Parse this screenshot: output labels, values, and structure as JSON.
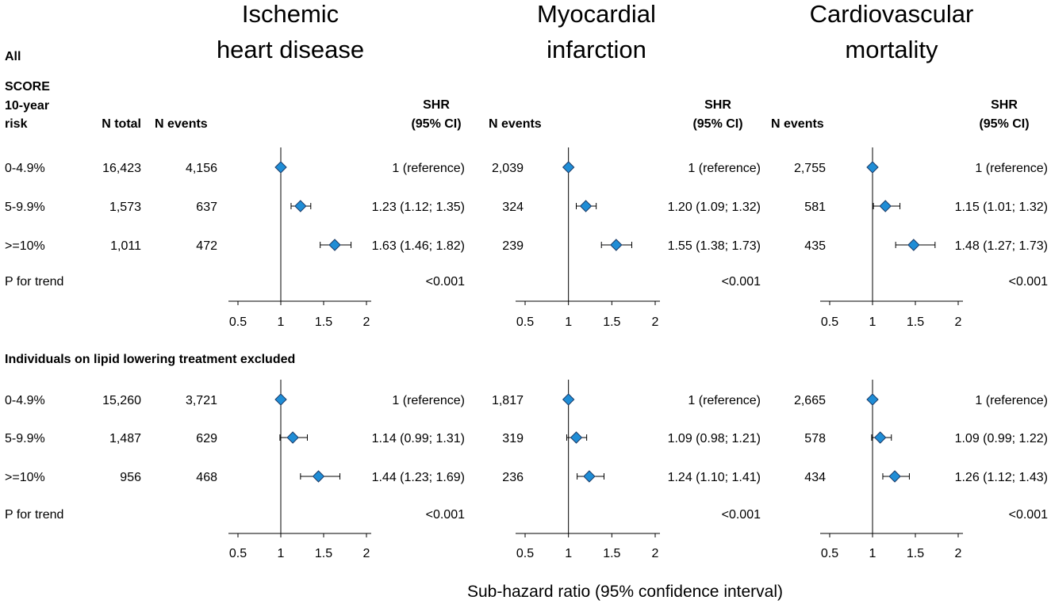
{
  "headers": {
    "all_label": "All",
    "score_label_line1": "SCORE",
    "score_label_line2": "10-year",
    "score_label_line3": "risk",
    "n_total": "N total",
    "n_events": "N events",
    "shr_line1": "SHR",
    "shr_line2": "(95% CI)",
    "excluded_label": "Individuals on lipid lowering treatment excluded"
  },
  "x_axis_label": "Sub-hazard ratio (95% confidence interval)",
  "chart_data": {
    "type": "forest",
    "x_axis": {
      "label": "Sub-hazard ratio (95% confidence interval)",
      "range": [
        0.5,
        2
      ],
      "ticks": [
        0.5,
        1,
        1.5,
        2
      ],
      "reference_line": 1
    },
    "categories": [
      "0-4.9%",
      "5-9.9%",
      ">=10%"
    ],
    "p_trend_label": "P for trend",
    "panels": [
      {
        "id": "ihd",
        "title_line1": "Ischemic",
        "title_line2": "heart disease",
        "sections": [
          {
            "n_total": [
              "16,423",
              "1,573",
              "1,011"
            ],
            "n_events": [
              "4,156",
              "637",
              "472"
            ],
            "shr": [
              1,
              1.23,
              1.63
            ],
            "lo": [
              1,
              1.12,
              1.46
            ],
            "hi": [
              1,
              1.35,
              1.82
            ],
            "shr_text": [
              "1 (reference)",
              "1.23 (1.12; 1.35)",
              "1.63 (1.46; 1.82)"
            ],
            "p_trend": "<0.001"
          },
          {
            "n_total": [
              "15,260",
              "1,487",
              "956"
            ],
            "n_events": [
              "3,721",
              "629",
              "468"
            ],
            "shr": [
              1,
              1.14,
              1.44
            ],
            "lo": [
              1,
              0.99,
              1.23
            ],
            "hi": [
              1,
              1.31,
              1.69
            ],
            "shr_text": [
              "1 (reference)",
              "1.14 (0.99; 1.31)",
              "1.44 (1.23; 1.69)"
            ],
            "p_trend": "<0.001"
          }
        ]
      },
      {
        "id": "mi",
        "title_line1": "Myocardial",
        "title_line2": "infarction",
        "sections": [
          {
            "n_events": [
              "2,039",
              "324",
              "239"
            ],
            "shr": [
              1,
              1.2,
              1.55
            ],
            "lo": [
              1,
              1.09,
              1.38
            ],
            "hi": [
              1,
              1.32,
              1.73
            ],
            "shr_text": [
              "1 (reference)",
              "1.20 (1.09; 1.32)",
              "1.55 (1.38; 1.73)"
            ],
            "p_trend": "<0.001"
          },
          {
            "n_events": [
              "1,817",
              "319",
              "236"
            ],
            "shr": [
              1,
              1.09,
              1.24
            ],
            "lo": [
              1,
              0.98,
              1.1
            ],
            "hi": [
              1,
              1.21,
              1.41
            ],
            "shr_text": [
              "1 (reference)",
              "1.09 (0.98; 1.21)",
              "1.24 (1.10; 1.41)"
            ],
            "p_trend": "<0.001"
          }
        ]
      },
      {
        "id": "cvm",
        "title_line1": "Cardiovascular",
        "title_line2": "mortality",
        "sections": [
          {
            "n_events": [
              "2,755",
              "581",
              "435"
            ],
            "shr": [
              1,
              1.15,
              1.48
            ],
            "lo": [
              1,
              1.01,
              1.27
            ],
            "hi": [
              1,
              1.32,
              1.73
            ],
            "shr_text": [
              "1 (reference)",
              "1.15 (1.01; 1.32)",
              "1.48 (1.27; 1.73)"
            ],
            "p_trend": "<0.001"
          },
          {
            "n_events": [
              "2,665",
              "578",
              "434"
            ],
            "shr": [
              1,
              1.09,
              1.26
            ],
            "lo": [
              1,
              0.99,
              1.12
            ],
            "hi": [
              1,
              1.22,
              1.43
            ],
            "shr_text": [
              "1 (reference)",
              "1.09 (0.99; 1.22)",
              "1.26 (1.12; 1.43)"
            ],
            "p_trend": "<0.001"
          }
        ]
      }
    ],
    "marker_color": "#1f8dd6"
  }
}
